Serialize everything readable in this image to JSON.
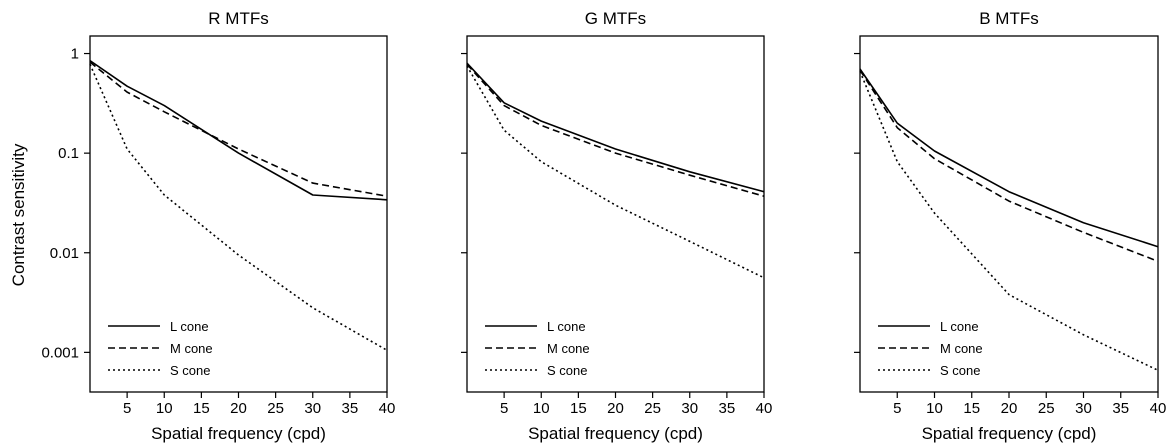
{
  "figure": {
    "ylabel": "Contrast sensitivity"
  },
  "chart_data": [
    {
      "type": "line",
      "title": "R MTFs",
      "xlabel": "Spatial frequency (cpd)",
      "ylabel": "Contrast sensitivity",
      "yscale": "log",
      "xlim": [
        0,
        40
      ],
      "ylim": [
        0.0004,
        1.5
      ],
      "xticks": [
        5,
        10,
        15,
        20,
        25,
        30,
        35,
        40
      ],
      "yticks": [
        1,
        0.1,
        0.01,
        0.001
      ],
      "ytick_labels": [
        "1",
        "0.1",
        "0.01",
        "0.001"
      ],
      "legend": "bottom-left",
      "series": [
        {
          "name": "L cone",
          "style": "solid",
          "x": [
            0,
            5,
            10,
            20,
            30,
            40
          ],
          "y": [
            0.85,
            0.47,
            0.3,
            0.1,
            0.038,
            0.034
          ]
        },
        {
          "name": "M cone",
          "style": "dashed",
          "x": [
            0,
            5,
            10,
            20,
            30,
            40
          ],
          "y": [
            0.82,
            0.41,
            0.26,
            0.11,
            0.05,
            0.037
          ]
        },
        {
          "name": "S cone",
          "style": "dotted",
          "x": [
            0,
            5,
            10,
            20,
            30,
            40
          ],
          "y": [
            0.78,
            0.11,
            0.038,
            0.0095,
            0.0028,
            0.00105
          ]
        }
      ]
    },
    {
      "type": "line",
      "title": "G MTFs",
      "xlabel": "Spatial frequency (cpd)",
      "yscale": "log",
      "xlim": [
        0,
        40
      ],
      "ylim": [
        0.0004,
        1.5
      ],
      "xticks": [
        5,
        10,
        15,
        20,
        25,
        30,
        35,
        40
      ],
      "legend": "bottom-left",
      "series": [
        {
          "name": "L cone",
          "style": "solid",
          "x": [
            0,
            5,
            10,
            20,
            30,
            40
          ],
          "y": [
            0.8,
            0.32,
            0.21,
            0.11,
            0.065,
            0.041
          ]
        },
        {
          "name": "M cone",
          "style": "dashed",
          "x": [
            0,
            5,
            10,
            20,
            30,
            40
          ],
          "y": [
            0.78,
            0.3,
            0.19,
            0.1,
            0.06,
            0.037
          ]
        },
        {
          "name": "S cone",
          "style": "dotted",
          "x": [
            0,
            5,
            10,
            20,
            30,
            40
          ],
          "y": [
            0.75,
            0.17,
            0.082,
            0.03,
            0.013,
            0.0056
          ]
        }
      ]
    },
    {
      "type": "line",
      "title": "B MTFs",
      "xlabel": "Spatial frequency (cpd)",
      "yscale": "log",
      "xlim": [
        0,
        40
      ],
      "ylim": [
        0.0004,
        1.5
      ],
      "xticks": [
        5,
        10,
        15,
        20,
        25,
        30,
        35,
        40
      ],
      "legend": "bottom-left",
      "series": [
        {
          "name": "L cone",
          "style": "solid",
          "x": [
            0,
            5,
            10,
            20,
            30,
            40
          ],
          "y": [
            0.7,
            0.2,
            0.105,
            0.041,
            0.02,
            0.0115
          ]
        },
        {
          "name": "M cone",
          "style": "dashed",
          "x": [
            0,
            5,
            10,
            20,
            30,
            40
          ],
          "y": [
            0.68,
            0.18,
            0.088,
            0.033,
            0.016,
            0.0082
          ]
        },
        {
          "name": "S cone",
          "style": "dotted",
          "x": [
            0,
            5,
            10,
            20,
            30,
            40
          ],
          "y": [
            0.66,
            0.082,
            0.025,
            0.0038,
            0.0015,
            0.00066
          ]
        }
      ]
    }
  ]
}
